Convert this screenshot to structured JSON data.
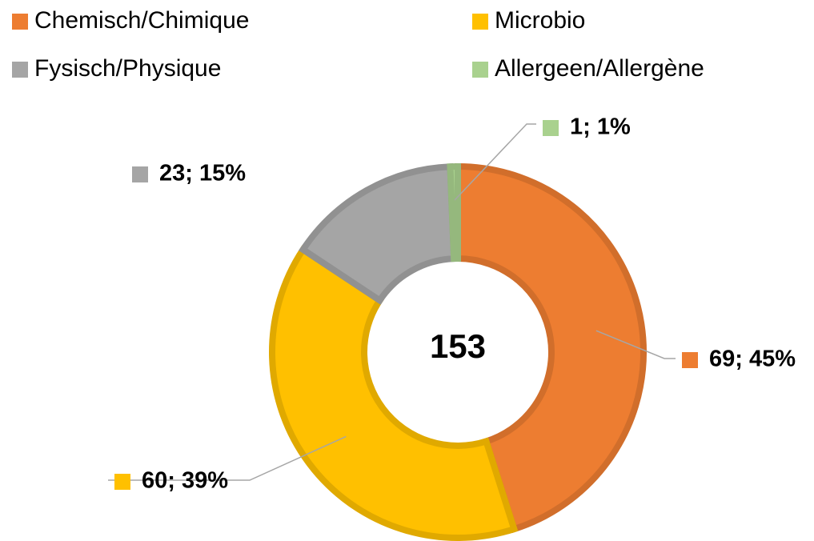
{
  "chart_data": {
    "type": "donut",
    "categories": [
      "Chemisch/Chimique",
      "Microbio",
      "Fysisch/Physique",
      "Allergeen/Allergène"
    ],
    "values": [
      69,
      60,
      23,
      1
    ],
    "value_labels": [
      "69; 45%",
      "60; 39%",
      "23; 15%",
      "1; 1%"
    ],
    "colors": [
      "#ED7D31",
      "#FFC000",
      "#A5A5A5",
      "#A9D18E"
    ],
    "total": 153
  }
}
